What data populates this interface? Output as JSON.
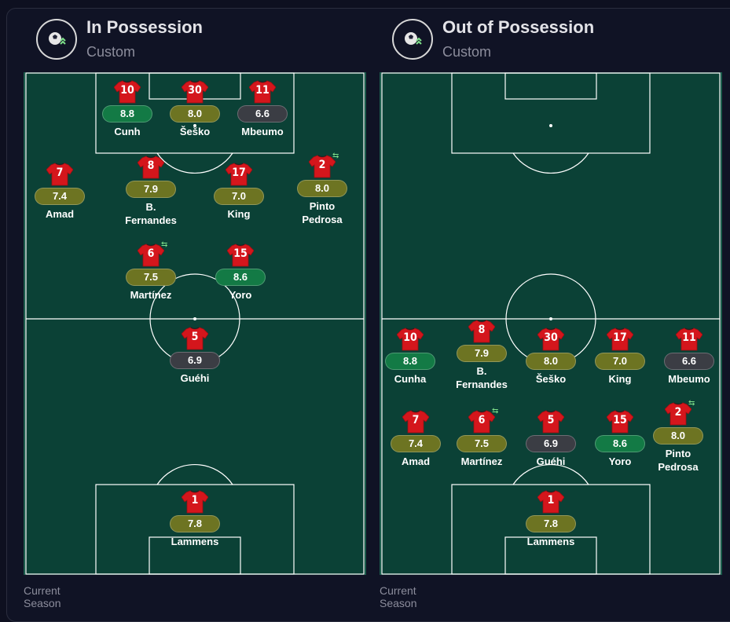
{
  "panels": [
    {
      "title": "In Possession",
      "subtitle": "Custom",
      "footer": "Current Season",
      "players": [
        {
          "number": "10",
          "rating": "8.8",
          "name": "Cunh",
          "rating_color": "green"
        },
        {
          "number": "30",
          "rating": "8.0",
          "name": "Šeško",
          "rating_color": "olive"
        },
        {
          "number": "11",
          "rating": "6.6",
          "name": "Mbeumo",
          "rating_color": "grey"
        },
        {
          "number": "7",
          "rating": "7.4",
          "name": "Amad",
          "rating_color": "olive"
        },
        {
          "number": "8",
          "rating": "7.9",
          "name": "B. Fernandes",
          "rating_color": "olive"
        },
        {
          "number": "17",
          "rating": "7.0",
          "name": "King",
          "rating_color": "olive"
        },
        {
          "number": "2",
          "rating": "8.0",
          "name": "Pinto Pedrosa",
          "rating_color": "olive",
          "sub": true
        },
        {
          "number": "6",
          "rating": "7.5",
          "name": "Martínez",
          "rating_color": "olive",
          "sub": true
        },
        {
          "number": "15",
          "rating": "8.6",
          "name": "Yoro",
          "rating_color": "green"
        },
        {
          "number": "5",
          "rating": "6.9",
          "name": "Guéhi",
          "rating_color": "grey"
        },
        {
          "number": "1",
          "rating": "7.8",
          "name": "Lammens",
          "rating_color": "olive"
        }
      ]
    },
    {
      "title": "Out of Possession",
      "subtitle": "Custom",
      "footer": "Current Season",
      "players": [
        {
          "number": "10",
          "rating": "8.8",
          "name": "Cunha",
          "rating_color": "green"
        },
        {
          "number": "8",
          "rating": "7.9",
          "name": "B. Fernandes",
          "rating_color": "olive"
        },
        {
          "number": "30",
          "rating": "8.0",
          "name": "Šeško",
          "rating_color": "olive"
        },
        {
          "number": "17",
          "rating": "7.0",
          "name": "King",
          "rating_color": "olive"
        },
        {
          "number": "11",
          "rating": "6.6",
          "name": "Mbeumo",
          "rating_color": "grey"
        },
        {
          "number": "7",
          "rating": "7.4",
          "name": "Amad",
          "rating_color": "olive"
        },
        {
          "number": "6",
          "rating": "7.5",
          "name": "Martínez",
          "rating_color": "olive",
          "sub": true
        },
        {
          "number": "5",
          "rating": "6.9",
          "name": "Guéhi",
          "rating_color": "grey"
        },
        {
          "number": "15",
          "rating": "8.6",
          "name": "Yoro",
          "rating_color": "green"
        },
        {
          "number": "2",
          "rating": "8.0",
          "name": "Pinto Pedrosa",
          "rating_color": "olive",
          "sub": true
        },
        {
          "number": "1",
          "rating": "7.8",
          "name": "Lammens",
          "rating_color": "olive"
        }
      ]
    }
  ],
  "colors": {
    "pitch": "#0b4136",
    "shirt": "#d4161c",
    "rating_green": "#137a45",
    "rating_olive": "#6d7422",
    "rating_grey": "#3b3d44"
  },
  "icons": {
    "panel_logo": "ball-with-arrows-icon",
    "shirt": "jersey-icon",
    "sub_marker": "substitution-arrows-icon"
  }
}
